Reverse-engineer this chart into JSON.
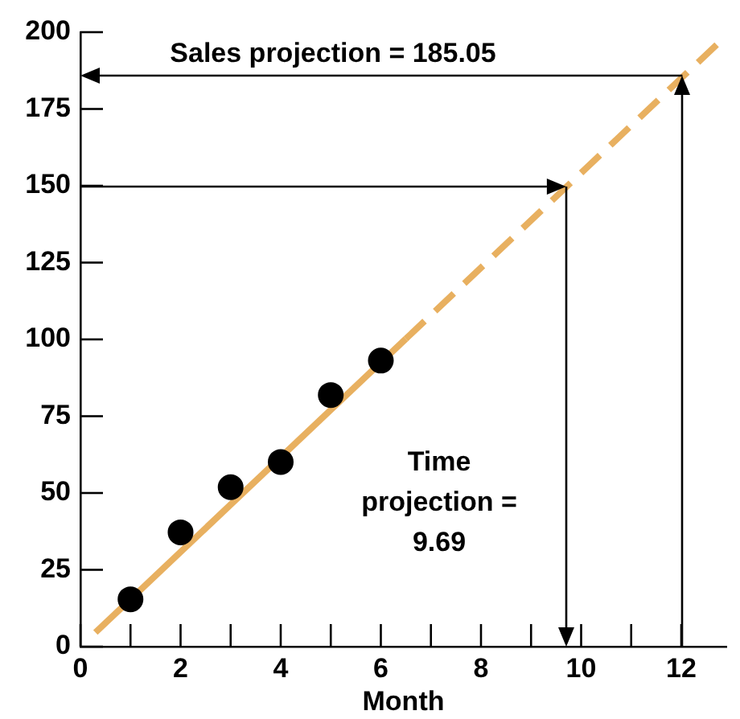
{
  "chart_data": {
    "type": "scatter",
    "xlabel": "Month",
    "series": [
      {
        "color": "#000000",
        "x": [
          1,
          2,
          3,
          4,
          5,
          6
        ],
        "values": [
          15.4,
          37.2,
          51.9,
          60.1,
          81.9,
          93.1
        ],
        "marker": "circle"
      },
      {
        "type": "line",
        "color": "#e8b060",
        "x": [
          0.3,
          6.5
        ],
        "values": [
          4.6,
          100.2
        ],
        "line_style": "solid"
      },
      {
        "type": "line",
        "color": "#e8b060",
        "x": [
          6.5,
          12.9
        ],
        "values": [
          100.2,
          198.9
        ],
        "line_style": "dashed"
      }
    ],
    "xlim": [
      0,
      12.9
    ],
    "ylim": [
      0,
      200
    ],
    "xticks": [
      0,
      {
        "value": 1,
        "label": null
      },
      2,
      {
        "value": 3,
        "label": null
      },
      4,
      {
        "value": 5,
        "label": null
      },
      6,
      {
        "value": 7,
        "label": null
      },
      8,
      {
        "value": 9,
        "label": null
      },
      10,
      {
        "value": 11,
        "label": null
      },
      12
    ],
    "yticks": [
      0,
      25,
      50,
      75,
      100,
      125,
      150,
      175,
      200
    ],
    "annotations": [
      "Sales projection = 185.05",
      "Time\nprojection =\n9.69"
    ],
    "legend": false
  }
}
